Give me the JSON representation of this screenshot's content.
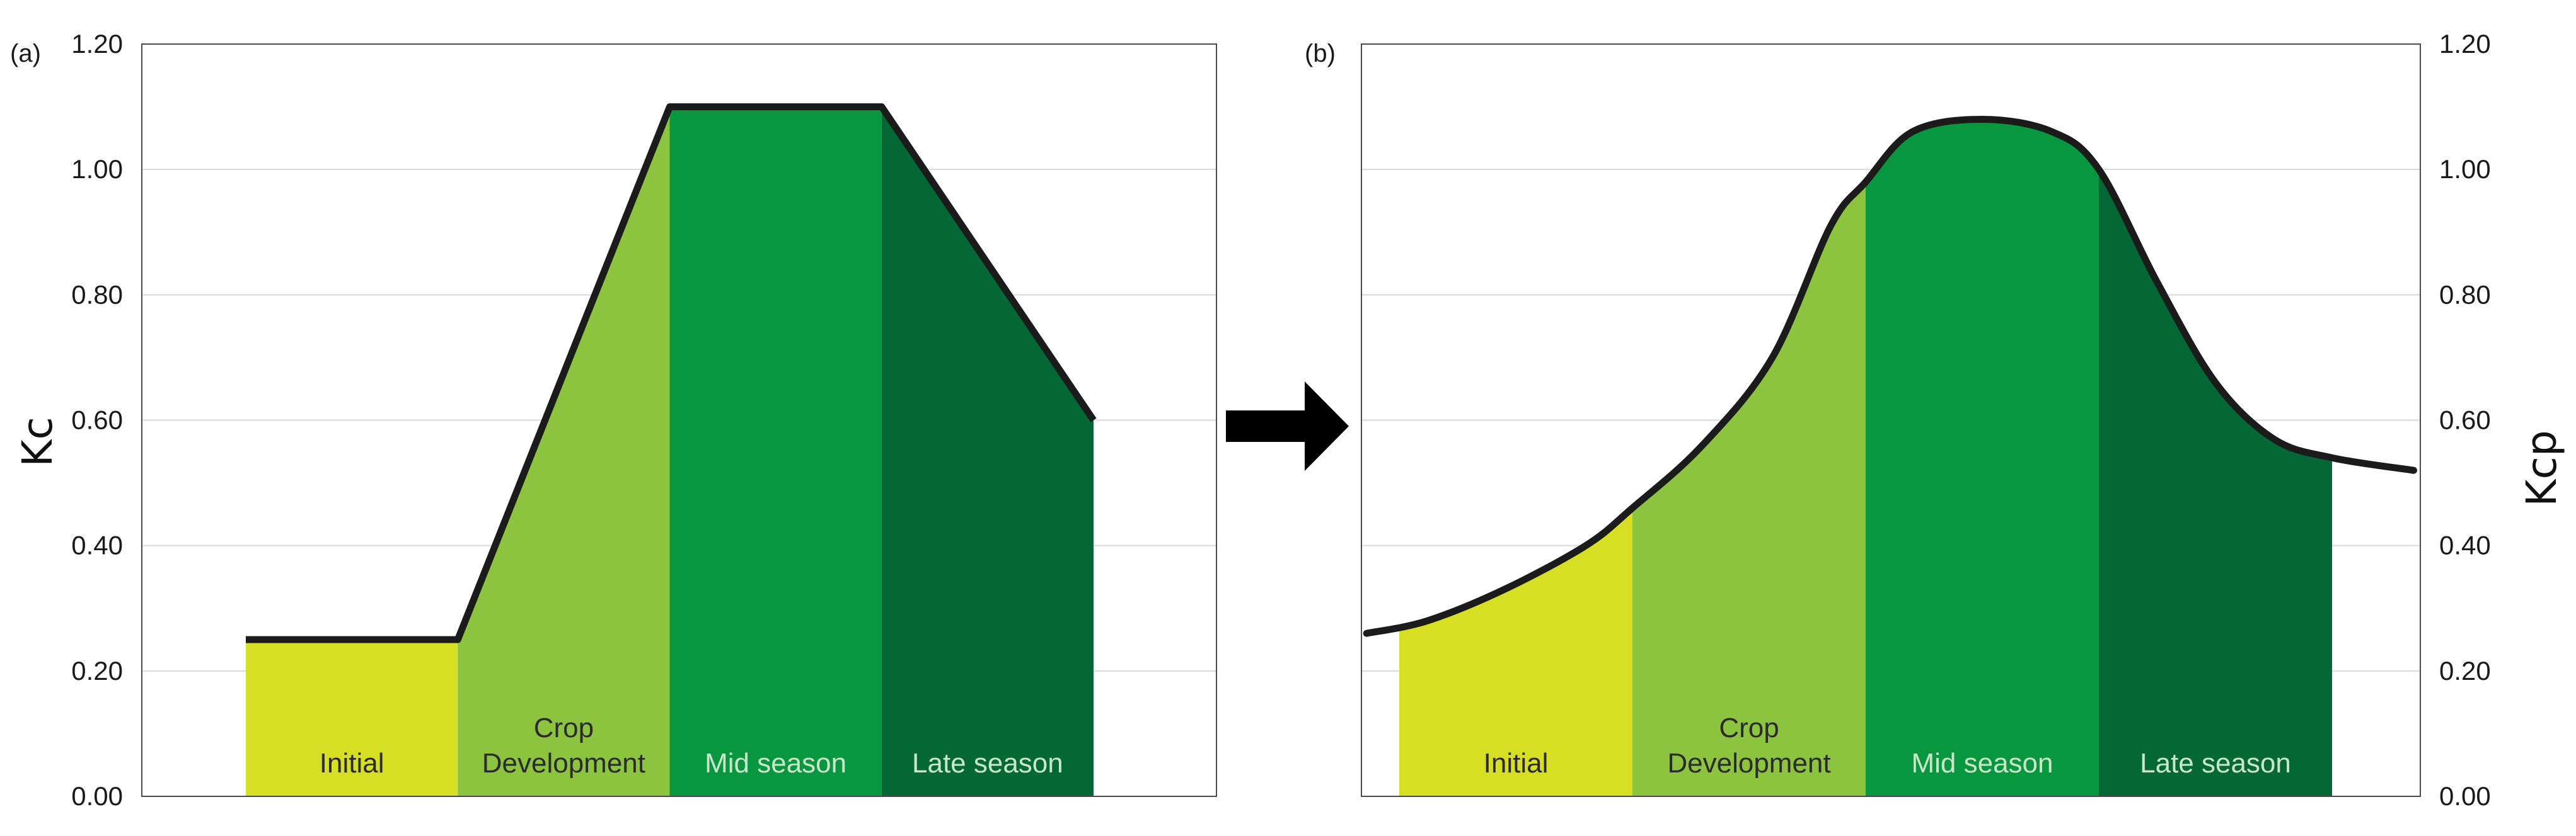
{
  "colors": {
    "initial": "#d6df23",
    "development": "#8cc43f",
    "mid": "#08963f",
    "late": "#046836",
    "curve": "#1b1b1b",
    "grid": "#d9d9d9",
    "frame": "#4a4a4a",
    "label_dark": "#2b2b2b",
    "label_light": "#c8e6c9"
  },
  "chart_data": [
    {
      "type": "area",
      "panel_label": "(a)",
      "ylabel": "Kc",
      "ylim": [
        0,
        1.2
      ],
      "y_ticks": [
        "0.00",
        "0.20",
        "0.40",
        "0.60",
        "0.80",
        "1.00",
        "1.20"
      ],
      "y_tick_values": [
        0,
        0.2,
        0.4,
        0.6,
        0.8,
        1.0,
        1.2
      ],
      "grid": true,
      "x_domain": [
        0,
        4
      ],
      "stages": [
        {
          "label": [
            "Initial"
          ],
          "start": 0,
          "end": 1,
          "color_key": "initial",
          "label_color_key": "label_dark"
        },
        {
          "label": [
            "Crop",
            "Development"
          ],
          "start": 1,
          "end": 2,
          "color_key": "development",
          "label_color_key": "label_dark"
        },
        {
          "label": [
            "Mid season"
          ],
          "start": 2,
          "end": 3,
          "color_key": "mid",
          "label_color_key": "label_light"
        },
        {
          "label": [
            "Late season"
          ],
          "start": 3,
          "end": 4,
          "color_key": "late",
          "label_color_key": "label_light"
        }
      ],
      "curve": {
        "style": "linear",
        "x": [
          0,
          1,
          2,
          3,
          4
        ],
        "y": [
          0.25,
          0.25,
          1.1,
          1.1,
          0.6
        ]
      }
    },
    {
      "type": "area",
      "panel_label": "(b)",
      "ylabel": "Kcp",
      "ylim": [
        0,
        1.2
      ],
      "y_ticks": [
        "0.00",
        "0.20",
        "0.40",
        "0.60",
        "0.80",
        "1.00",
        "1.20"
      ],
      "y_tick_values": [
        0,
        0.2,
        0.4,
        0.6,
        0.8,
        1.0,
        1.2
      ],
      "grid": true,
      "x_domain": [
        -0.14,
        4.35
      ],
      "stages": [
        {
          "label": [
            "Initial"
          ],
          "start": 0,
          "end": 1,
          "color_key": "initial",
          "label_color_key": "label_dark"
        },
        {
          "label": [
            "Crop",
            "Development"
          ],
          "start": 1,
          "end": 2,
          "color_key": "development",
          "label_color_key": "label_dark"
        },
        {
          "label": [
            "Mid season"
          ],
          "start": 2,
          "end": 3,
          "color_key": "mid",
          "label_color_key": "label_light"
        },
        {
          "label": [
            "Late season"
          ],
          "start": 3,
          "end": 4,
          "color_key": "late",
          "label_color_key": "label_light"
        }
      ],
      "curve": {
        "style": "smooth",
        "x": [
          -0.14,
          0.12,
          0.45,
          0.8,
          1.0,
          1.3,
          1.6,
          1.85,
          2.0,
          2.2,
          2.5,
          2.8,
          3.0,
          3.25,
          3.5,
          3.75,
          4.0,
          4.35
        ],
        "y": [
          0.26,
          0.28,
          0.33,
          0.4,
          0.46,
          0.56,
          0.7,
          0.91,
          0.98,
          1.06,
          1.08,
          1.06,
          1.0,
          0.82,
          0.66,
          0.57,
          0.54,
          0.52
        ]
      }
    }
  ]
}
